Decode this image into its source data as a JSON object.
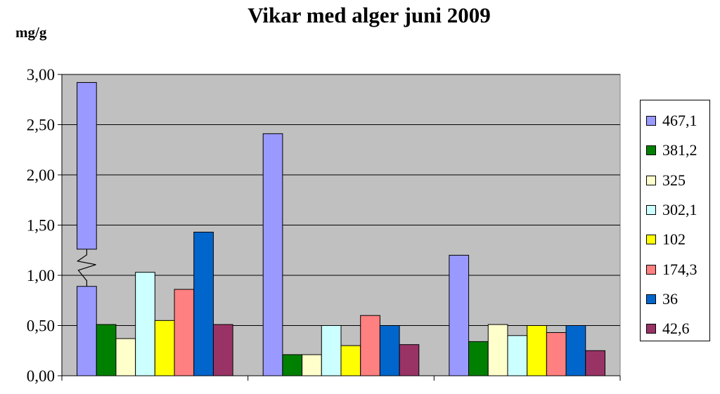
{
  "chart_data": {
    "type": "bar",
    "title": "Vikar med alger juni 2009",
    "ylabel": "mg/g",
    "xlabel": "",
    "ylim": [
      0,
      3.0
    ],
    "yticks": [
      "0,00",
      "0,50",
      "1,00",
      "1,50",
      "2,00",
      "2,50",
      "3,00"
    ],
    "ytick_values": [
      0,
      0.5,
      1.0,
      1.5,
      2.0,
      2.5,
      3.0
    ],
    "categories": [
      "",
      "",
      ""
    ],
    "grid": true,
    "plot_background": "#c0c0c0",
    "legend_position": "right",
    "axis_break": {
      "series": "467,1",
      "category_index": 0
    },
    "series": [
      {
        "name": "467,1",
        "color": "#9999ff",
        "values": [
          2.92,
          2.41,
          1.2
        ]
      },
      {
        "name": "381,2",
        "color": "#008000",
        "values": [
          0.51,
          0.21,
          0.34
        ]
      },
      {
        "name": "325",
        "color": "#ffffcc",
        "values": [
          0.37,
          0.21,
          0.51
        ]
      },
      {
        "name": "302,1",
        "color": "#ccffff",
        "values": [
          1.03,
          0.5,
          0.4
        ]
      },
      {
        "name": "102",
        "color": "#ffff00",
        "values": [
          0.55,
          0.3,
          0.5
        ]
      },
      {
        "name": "174,3",
        "color": "#ff8080",
        "values": [
          0.86,
          0.6,
          0.43
        ]
      },
      {
        "name": "36",
        "color": "#0066cc",
        "values": [
          1.43,
          0.5,
          0.5
        ]
      },
      {
        "name": "42,6",
        "color": "#993366",
        "values": [
          0.51,
          0.31,
          0.25
        ]
      }
    ]
  }
}
